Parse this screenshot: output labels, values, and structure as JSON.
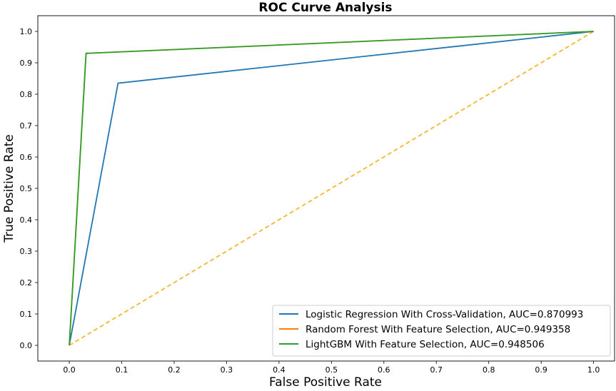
{
  "chart_data": {
    "type": "line",
    "title": "ROC Curve Analysis",
    "xlabel": "False Positive Rate",
    "ylabel": "True Positive Rate",
    "xlim": [
      -0.06,
      1.04
    ],
    "ylim": [
      -0.05,
      1.05
    ],
    "xticks": [
      "0.0",
      "0.1",
      "0.2",
      "0.3",
      "0.4",
      "0.5",
      "0.6",
      "0.7",
      "0.8",
      "0.9",
      "1.0"
    ],
    "yticks": [
      "0.0",
      "0.1",
      "0.2",
      "0.3",
      "0.4",
      "0.5",
      "0.6",
      "0.7",
      "0.8",
      "0.9",
      "1.0"
    ],
    "grid": false,
    "legend_position": "lower-right",
    "series": [
      {
        "name": "Logistic Regression With Cross-Validation, AUC=0.870993",
        "color": "#1f77b4",
        "style": "solid",
        "x": [
          0.0,
          0.093,
          1.0
        ],
        "y": [
          0.0,
          0.835,
          1.0
        ]
      },
      {
        "name": "Random Forest With Feature Selection, AUC=0.949358",
        "color": "#ff7f0e",
        "style": "solid",
        "x": [
          0.0,
          0.032,
          1.0
        ],
        "y": [
          0.0,
          0.93,
          1.0
        ]
      },
      {
        "name": "LightGBM With Feature Selection, AUC=0.948506",
        "color": "#2ca02c",
        "style": "solid",
        "x": [
          0.0,
          0.032,
          1.0
        ],
        "y": [
          0.0,
          0.93,
          1.0
        ]
      }
    ],
    "reference_line": {
      "color": "#f5b731",
      "style": "dashed",
      "x": [
        0.0,
        1.0
      ],
      "y": [
        0.0,
        1.0
      ]
    }
  }
}
